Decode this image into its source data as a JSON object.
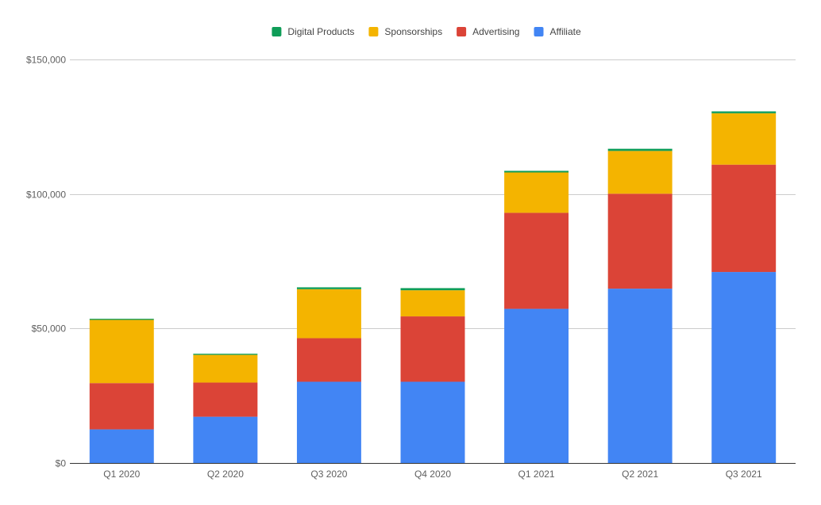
{
  "chart_data": {
    "type": "bar",
    "stacked": true,
    "categories": [
      "Q1 2020",
      "Q2 2020",
      "Q3 2020",
      "Q4 2020",
      "Q1 2021",
      "Q2 2021",
      "Q3 2021"
    ],
    "series": [
      {
        "name": "Affiliate",
        "color": "#4285f4",
        "values": [
          12500,
          17200,
          30200,
          30200,
          57300,
          64800,
          71000
        ]
      },
      {
        "name": "Advertising",
        "color": "#db4437",
        "values": [
          17200,
          12700,
          16200,
          24300,
          35700,
          35300,
          39900
        ]
      },
      {
        "name": "Sponsorships",
        "color": "#f4b400",
        "values": [
          23500,
          10300,
          18200,
          9700,
          15000,
          15900,
          19100
        ]
      },
      {
        "name": "Digital Products",
        "color": "#0f9d58",
        "values": [
          400,
          400,
          700,
          800,
          600,
          800,
          700
        ]
      }
    ],
    "legend_order": [
      "Digital Products",
      "Sponsorships",
      "Advertising",
      "Affiliate"
    ],
    "legend_position": "top",
    "ylim": [
      0,
      150000
    ],
    "yticks": [
      {
        "value": 0,
        "label": "$0"
      },
      {
        "value": 50000,
        "label": "$50,000"
      },
      {
        "value": 100000,
        "label": "$100,000"
      },
      {
        "value": 150000,
        "label": "$150,000"
      }
    ],
    "title": "",
    "xlabel": "",
    "ylabel": "",
    "grid": true,
    "gridline_color": "#cccccc",
    "baseline_color": "#333333"
  }
}
